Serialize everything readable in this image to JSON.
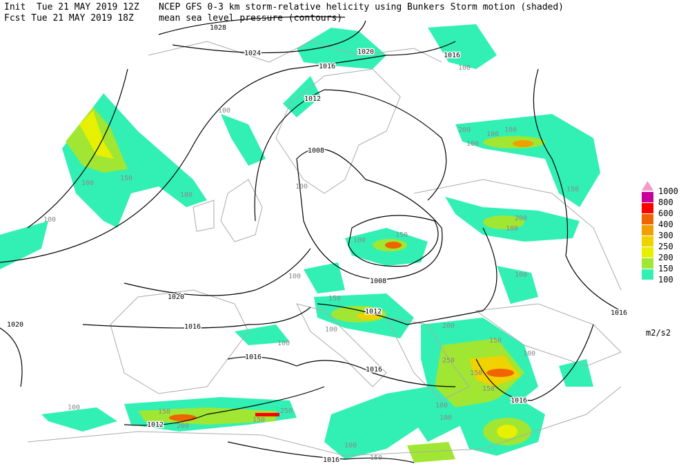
{
  "header": {
    "line1_left": "Init  Tue 21 MAY 2019 12Z",
    "line1_right": "NCEP GFS 0-3 km storm-relative helicity using Bunkers Storm motion (shaded)",
    "line2_left": "Fcst Tue 21 MAY 2019 18Z",
    "line2_right": "mean sea level pressure (contours)"
  },
  "legend": {
    "levels": [
      {
        "label": "1000",
        "color": "#f49ac8"
      },
      {
        "label": "800",
        "color": "#c8009a"
      },
      {
        "label": "600",
        "color": "#ff0000"
      },
      {
        "label": "400",
        "color": "#f06400"
      },
      {
        "label": "300",
        "color": "#f0a000"
      },
      {
        "label": "250",
        "color": "#f0d200"
      },
      {
        "label": "200",
        "color": "#e6f000"
      },
      {
        "label": "150",
        "color": "#a0e632"
      },
      {
        "label": "100",
        "color": "#32f0b4"
      }
    ],
    "unit": "m2/s2"
  },
  "contour_labels": [
    "1028",
    "1024",
    "1020",
    "1016",
    "1016",
    "1012",
    "1008",
    "1008",
    "1012",
    "1020",
    "1016",
    "1016",
    "1016",
    "1016",
    "1016",
    "1020",
    "1012",
    "1016"
  ],
  "shade_labels": [
    "100",
    "150",
    "100",
    "100",
    "100",
    "100",
    "100",
    "150",
    "100",
    "150",
    "100",
    "100",
    "100",
    "150",
    "200",
    "250",
    "150",
    "200",
    "100",
    "100",
    "100",
    "150",
    "200",
    "100",
    "100",
    "200",
    "150",
    "250",
    "150",
    "100",
    "150",
    "100",
    "150",
    "100",
    "100",
    "100"
  ]
}
